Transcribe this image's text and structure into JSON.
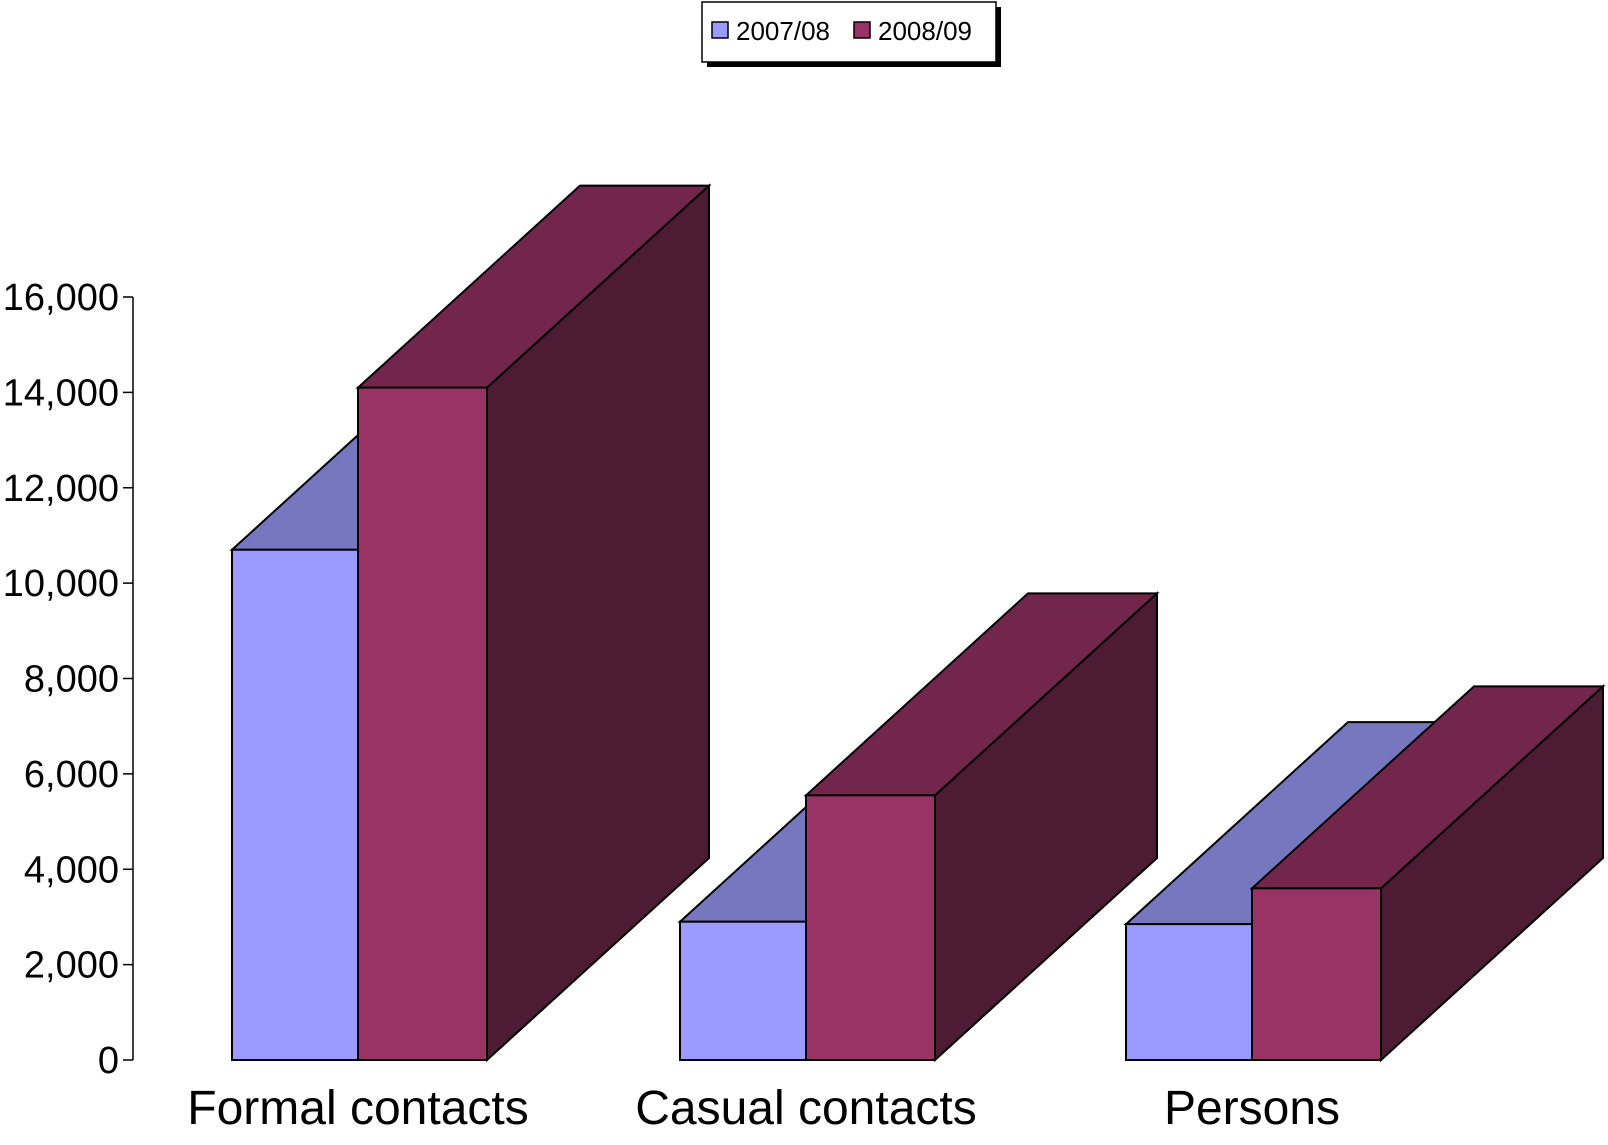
{
  "colors": {
    "series_2007": "#9B9BFF",
    "series_2007_top": "#7777BF",
    "series_2008": "#993366",
    "series_2008_top": "#72264C",
    "series_2008_side": "#4D1B33",
    "axis": "#000000"
  },
  "chart_data": {
    "type": "bar",
    "style": "3d-clustered-columns",
    "title": "",
    "xlabel": "",
    "ylabel": "",
    "categories": [
      "Formal contacts",
      "Casual contacts",
      "Persons"
    ],
    "series": [
      {
        "name": "2007/08",
        "values": [
          10700,
          2900,
          2850
        ]
      },
      {
        "name": "2008/09",
        "values": [
          14100,
          5550,
          3600
        ]
      }
    ],
    "ylim": [
      0,
      16000
    ],
    "y_ticks": [
      0,
      2000,
      4000,
      6000,
      8000,
      10000,
      12000,
      14000,
      16000
    ],
    "y_tick_labels": [
      "0",
      "2,000",
      "4,000",
      "6,000",
      "8,000",
      "10,000",
      "12,000",
      "14,000",
      "16,000"
    ],
    "grid": false,
    "legend": {
      "position": "top-center",
      "entries": [
        "2007/08",
        "2008/09"
      ]
    }
  }
}
